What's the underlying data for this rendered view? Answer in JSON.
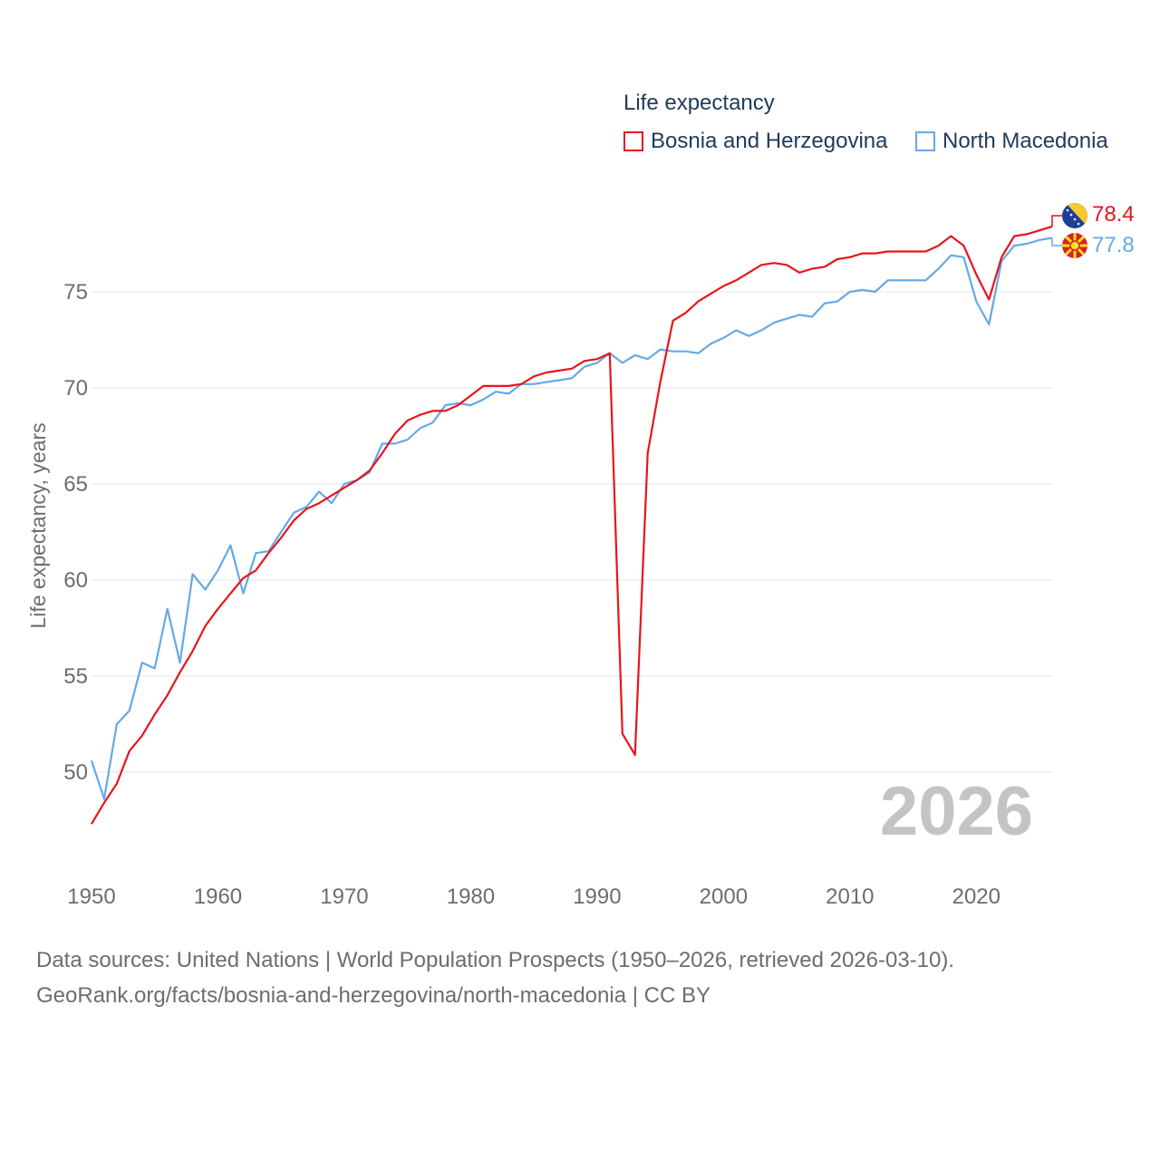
{
  "legend": {
    "title": "Life expectancy",
    "series1": "Bosnia and Herzegovina",
    "series2": "North Macedonia"
  },
  "watermark_year": "2026",
  "footer": {
    "line1": "Data sources: United Nations | World Population Prospects (1950–2026, retrieved 2026-03-10).",
    "line2": "GeoRank.org/facts/bosnia-and-herzegovina/north-macedonia | CC BY"
  },
  "chart_data": {
    "type": "line",
    "title": "Life expectancy",
    "xlabel": "",
    "ylabel": "Life expectancy, years",
    "xlim": [
      1950,
      2026
    ],
    "ylim": [
      45.5,
      80
    ],
    "yticks": [
      50,
      55,
      60,
      65,
      70,
      75
    ],
    "xticks": [
      1950,
      1960,
      1970,
      1980,
      1990,
      2000,
      2010,
      2020
    ],
    "grid": true,
    "legend_position": "top-right",
    "end_labels": [
      "78.4",
      "77.8"
    ],
    "x": [
      1950,
      1951,
      1952,
      1953,
      1954,
      1955,
      1956,
      1957,
      1958,
      1959,
      1960,
      1961,
      1962,
      1963,
      1964,
      1965,
      1966,
      1967,
      1968,
      1969,
      1970,
      1971,
      1972,
      1973,
      1974,
      1975,
      1976,
      1977,
      1978,
      1979,
      1980,
      1981,
      1982,
      1983,
      1984,
      1985,
      1986,
      1987,
      1988,
      1989,
      1990,
      1991,
      1992,
      1993,
      1994,
      1995,
      1996,
      1997,
      1998,
      1999,
      2000,
      2001,
      2002,
      2003,
      2004,
      2005,
      2006,
      2007,
      2008,
      2009,
      2010,
      2011,
      2012,
      2013,
      2014,
      2015,
      2016,
      2017,
      2018,
      2019,
      2020,
      2021,
      2022,
      2023,
      2024,
      2025,
      2026
    ],
    "series": [
      {
        "name": "Bosnia and Herzegovina",
        "color": "#e8141c",
        "values": [
          47.3,
          48.4,
          49.4,
          51.1,
          51.9,
          53.0,
          54.0,
          55.2,
          56.3,
          57.6,
          58.5,
          59.3,
          60.1,
          60.5,
          61.4,
          62.2,
          63.1,
          63.7,
          64.0,
          64.4,
          64.8,
          65.2,
          65.7,
          66.6,
          67.6,
          68.3,
          68.6,
          68.8,
          68.8,
          69.1,
          69.6,
          70.1,
          70.1,
          70.1,
          70.2,
          70.6,
          70.8,
          70.9,
          71.0,
          71.4,
          71.5,
          71.8,
          52.0,
          50.9,
          66.6,
          70.3,
          73.5,
          73.9,
          74.5,
          74.9,
          75.3,
          75.6,
          76.0,
          76.4,
          76.5,
          76.4,
          76.0,
          76.2,
          76.3,
          76.7,
          76.8,
          77.0,
          77.0,
          77.1,
          77.1,
          77.1,
          77.1,
          77.4,
          77.9,
          77.4,
          75.9,
          74.6,
          76.8,
          77.9,
          78.0,
          78.2,
          78.4
        ]
      },
      {
        "name": "North Macedonia",
        "color": "#65a9e6",
        "values": [
          50.6,
          48.6,
          52.5,
          53.2,
          55.7,
          55.4,
          58.5,
          55.7,
          60.3,
          59.5,
          60.5,
          61.8,
          59.3,
          61.4,
          61.5,
          62.5,
          63.5,
          63.8,
          64.6,
          64.0,
          65.0,
          65.2,
          65.6,
          67.1,
          67.1,
          67.3,
          67.9,
          68.2,
          69.1,
          69.2,
          69.1,
          69.4,
          69.8,
          69.7,
          70.2,
          70.2,
          70.3,
          70.4,
          70.5,
          71.1,
          71.3,
          71.8,
          71.3,
          71.7,
          71.5,
          72.0,
          71.9,
          71.9,
          71.8,
          72.3,
          72.6,
          73.0,
          72.7,
          73.0,
          73.4,
          73.6,
          73.8,
          73.7,
          74.4,
          74.5,
          75.0,
          75.1,
          75.0,
          75.6,
          75.6,
          75.6,
          75.6,
          76.2,
          76.9,
          76.8,
          74.5,
          73.3,
          76.6,
          77.4,
          77.5,
          77.7,
          77.8
        ]
      }
    ]
  }
}
